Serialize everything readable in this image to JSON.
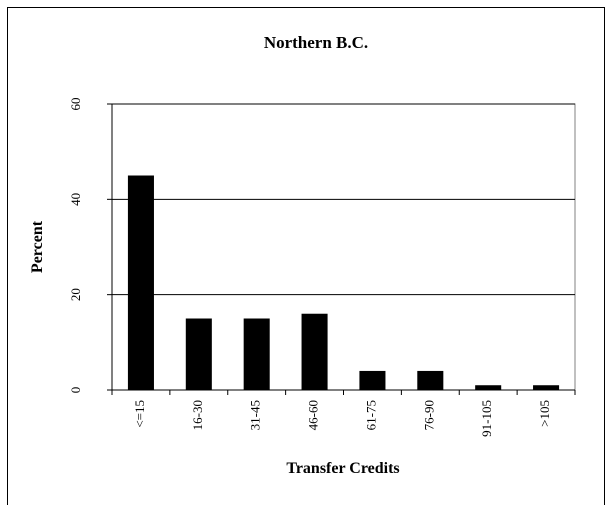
{
  "chart_data": {
    "type": "bar",
    "title": "Northern B.C.",
    "x_label": "Transfer Credits",
    "y_label": "Percent",
    "categories": [
      "<=15",
      "16-30",
      "31-45",
      "46-60",
      "61-75",
      "76-90",
      "91-105",
      ">105"
    ],
    "values": [
      45,
      15,
      15,
      16,
      4,
      4,
      1,
      1
    ],
    "color": "#000000",
    "ylim": [
      0,
      60
    ],
    "yticks": [
      0,
      20,
      40,
      60
    ],
    "grid": true
  }
}
